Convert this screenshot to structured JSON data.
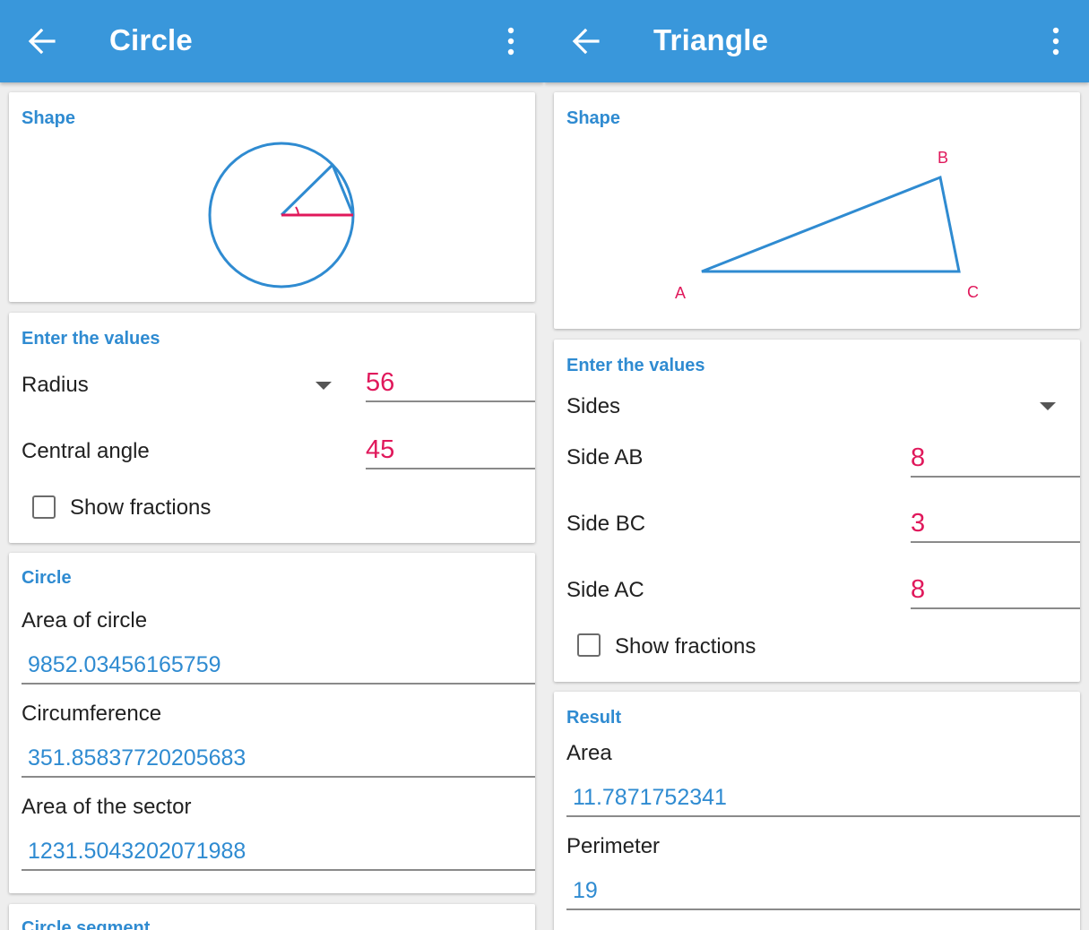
{
  "circle_screen": {
    "title": "Circle",
    "shape_title": "Shape",
    "input_title": "Enter the values",
    "selector_value": "Radius",
    "radius_value": "56",
    "angle_label": "Central angle",
    "angle_value": "45",
    "fractions_label": "Show fractions",
    "result_title": "Circle",
    "results": [
      {
        "label": "Area of circle",
        "value": "9852.03456165759"
      },
      {
        "label": "Circumference",
        "value": "351.85837720205683"
      },
      {
        "label": "Area of the sector",
        "value": "1231.5043202071988"
      }
    ],
    "next_section_title": "Circle segment"
  },
  "triangle_screen": {
    "title": "Triangle",
    "shape_title": "Shape",
    "vertex_labels": {
      "a": "A",
      "b": "B",
      "c": "C"
    },
    "input_title": "Enter the values",
    "selector_value": "Sides",
    "sides": [
      {
        "label": "Side AB",
        "value": "8"
      },
      {
        "label": "Side BC",
        "value": "3"
      },
      {
        "label": "Side AC",
        "value": "8"
      }
    ],
    "fractions_label": "Show fractions",
    "result_title": "Result",
    "results": [
      {
        "label": "Area",
        "value": "11.7871752341"
      },
      {
        "label": "Perimeter",
        "value": "19"
      }
    ]
  },
  "icons": {
    "back": "arrow-left-icon",
    "menu": "more-vert-icon",
    "dropdown": "caret-down-icon"
  },
  "colors": {
    "appbar": "#3997db",
    "accent_blue": "#2f8bd1",
    "input_pink": "#e0185b"
  }
}
